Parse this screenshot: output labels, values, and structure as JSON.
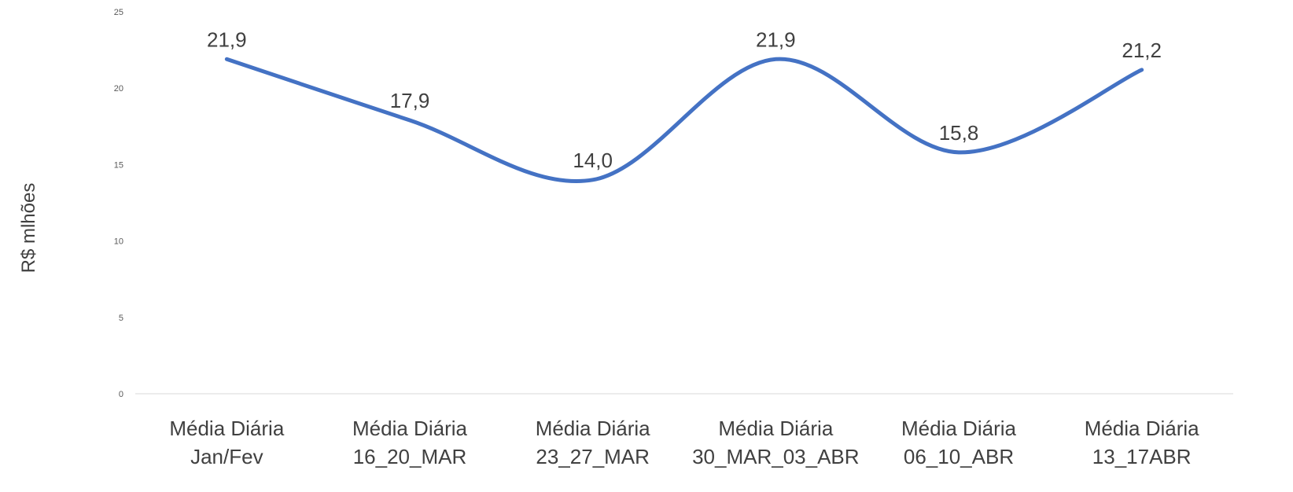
{
  "chart_data": {
    "type": "line",
    "title": "",
    "xlabel": "",
    "ylabel": "R$ mlhões",
    "ylim": [
      0,
      25
    ],
    "yticks": [
      "0",
      "5",
      "10",
      "15",
      "20",
      "25"
    ],
    "grid": false,
    "smooth": true,
    "categories": [
      [
        "Média Diária",
        "Jan/Fev"
      ],
      [
        "Média Diária",
        "16_20_MAR"
      ],
      [
        "Média Diária",
        "23_27_MAR"
      ],
      [
        "Média Diária",
        "30_MAR_03_ABR"
      ],
      [
        "Média Diária",
        "06_10_ABR"
      ],
      [
        "Média Diária",
        "13_17ABR"
      ]
    ],
    "series": [
      {
        "color": "#4472C4",
        "values": [
          21.9,
          17.9,
          14.0,
          21.9,
          15.8,
          21.2
        ],
        "labels": [
          "21,9",
          "17,9",
          "14,0",
          "21,9",
          "15,8",
          "21,2"
        ]
      }
    ]
  }
}
